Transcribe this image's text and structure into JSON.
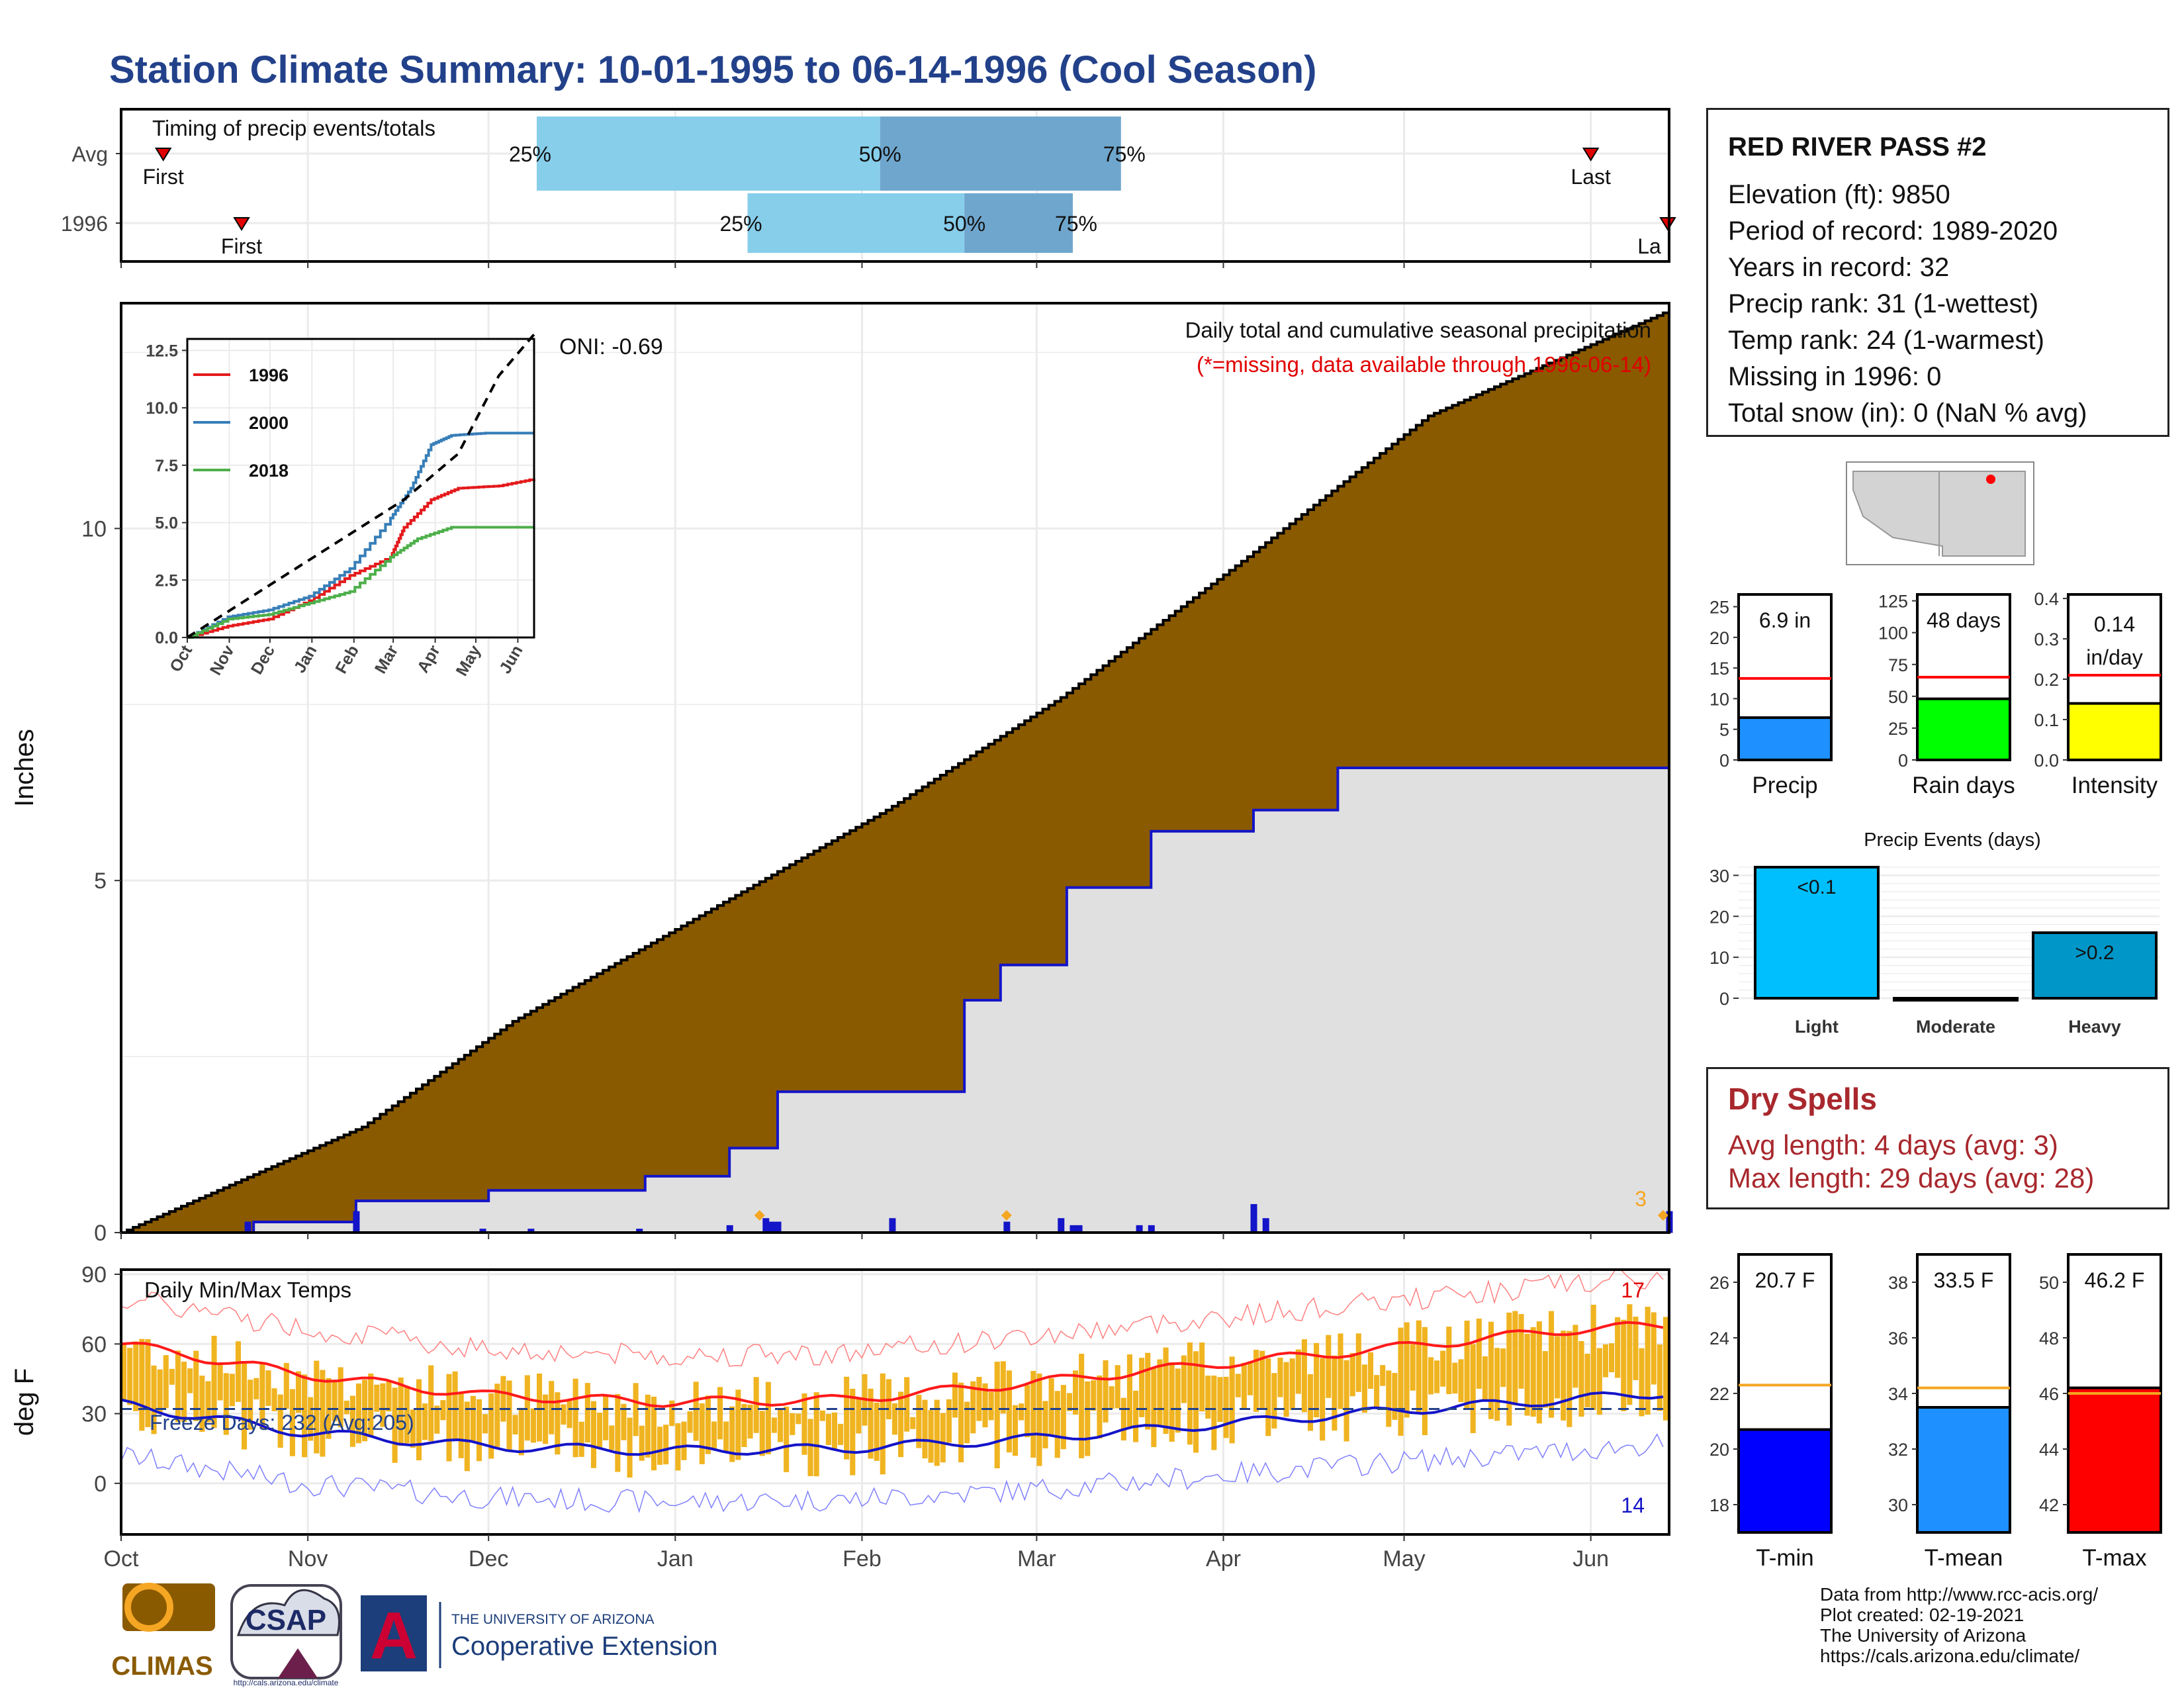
{
  "title": "Station Climate Summary: 10-01-1995 to 06-14-1996 (Cool Season)",
  "colors": {
    "title": "#22418a",
    "cumulative_fill": "#8a5a00",
    "avg_fill": "#e0e0e0",
    "avg_line": "#1414c8",
    "daily_bar": "#1414c8",
    "temp_bar": "#f0b421",
    "tmax_line": "#ff1a1a",
    "tmin_line": "#1414c8",
    "light_blue": "#87ceeb",
    "mid_blue": "#6fa6cd"
  },
  "timing_panel": {
    "title": "Timing of precip events/totals",
    "rows": [
      {
        "label": "Avg",
        "first_label": "First",
        "last_label": "Last",
        "first": "1995-10-08",
        "last": "1996-06-01",
        "q25": "1995-12-09",
        "q50": "1996-02-04",
        "q75": "1996-03-15",
        "q25_label": "25%",
        "q50_label": "50%",
        "q75_label": "75%"
      },
      {
        "label": "1996",
        "first_label": "First",
        "last_label": "La",
        "first": "1995-10-21",
        "last": "1996-06-14",
        "q25": "1996-01-13",
        "q50": "1996-02-18",
        "q75": "1996-03-07",
        "q25_label": "25%",
        "q50_label": "50%",
        "q75_label": "75%"
      }
    ]
  },
  "station": {
    "name": "RED RIVER PASS #2",
    "lines": [
      "Elevation (ft): 9850",
      "Period of record: 1989-2020",
      "Years in record: 32",
      "Precip rank: 31 (1-wettest)",
      "Temp rank: 24 (1-warmest)",
      "Missing in 1996: 0",
      "Total snow (in): 0 (NaN % avg)"
    ]
  },
  "precip_panel": {
    "ylabel": "Inches",
    "yticks": [
      "0",
      "5",
      "10"
    ],
    "oni": "ONI: -0.69",
    "caption": "Daily total and cumulative seasonal precipitation",
    "missing_note": "(*=missing, data available through 1996-06-14)",
    "count_label": "3"
  },
  "chart_data": [
    {
      "type": "area",
      "name": "cumulative precipitation",
      "x_range": [
        "1995-10-01",
        "1996-06-14"
      ],
      "ylim": [
        0,
        13.2
      ],
      "avg_cumulative": {
        "x": [
          "1995-10-01",
          "1995-11-10",
          "1995-12-05",
          "1996-01-05",
          "1996-02-05",
          "1996-03-05",
          "1996-04-05",
          "1996-05-05",
          "1996-06-14"
        ],
        "y": [
          0,
          1.5,
          3.0,
          4.5,
          6.0,
          7.6,
          9.6,
          11.6,
          13.1
        ]
      },
      "year_cumulative": {
        "x": [
          "1995-10-01",
          "1995-10-23",
          "1995-11-09",
          "1995-12-01",
          "1995-12-27",
          "1996-01-10",
          "1996-01-18",
          "1996-02-18",
          "1996-02-24",
          "1996-03-06",
          "1996-03-20",
          "1996-04-06",
          "1996-04-20",
          "1996-06-12",
          "1996-06-14"
        ],
        "y": [
          0,
          0.15,
          0.45,
          0.6,
          0.8,
          1.2,
          2.0,
          3.3,
          3.8,
          4.9,
          5.7,
          6.0,
          6.6,
          6.6,
          6.9
        ]
      },
      "daily_events": [
        {
          "date": "1995-10-22",
          "value": 0.15
        },
        {
          "date": "1995-11-09",
          "value": 0.3
        },
        {
          "date": "1995-11-30",
          "value": 0.05
        },
        {
          "date": "1995-12-08",
          "value": 0.05
        },
        {
          "date": "1995-12-26",
          "value": 0.05
        },
        {
          "date": "1996-01-10",
          "value": 0.1
        },
        {
          "date": "1996-01-16",
          "value": 0.2
        },
        {
          "date": "1996-01-17",
          "value": 0.15
        },
        {
          "date": "1996-01-18",
          "value": 0.15
        },
        {
          "date": "1996-02-06",
          "value": 0.2
        },
        {
          "date": "1996-02-25",
          "value": 0.15
        },
        {
          "date": "1996-03-05",
          "value": 0.2
        },
        {
          "date": "1996-03-07",
          "value": 0.1
        },
        {
          "date": "1996-03-08",
          "value": 0.1
        },
        {
          "date": "1996-03-18",
          "value": 0.1
        },
        {
          "date": "1996-03-20",
          "value": 0.1
        },
        {
          "date": "1996-04-06",
          "value": 0.4
        },
        {
          "date": "1996-04-08",
          "value": 0.2
        },
        {
          "date": "1996-06-14",
          "value": 0.3
        }
      ],
      "missing_marks": [
        {
          "date": "1996-01-15"
        },
        {
          "date": "1996-02-25"
        },
        {
          "date": "1996-06-13"
        }
      ]
    },
    {
      "type": "line",
      "name": "inset cumulative comparison",
      "yticks": [
        "0.0",
        "2.5",
        "5.0",
        "7.5",
        "10.0",
        "12.5"
      ],
      "ylim": [
        0,
        13
      ],
      "months": [
        "Oct",
        "Nov",
        "Dec",
        "Jan",
        "Feb",
        "Mar",
        "Apr",
        "May",
        "Jun"
      ],
      "series": [
        {
          "name": "1996",
          "color": "#e41a1c",
          "x": [
            0,
            30,
            60,
            90,
            120,
            150,
            160,
            180,
            200,
            230,
            256
          ],
          "y": [
            0,
            0.5,
            0.8,
            1.6,
            2.7,
            3.5,
            4.8,
            6.0,
            6.5,
            6.6,
            6.9
          ]
        },
        {
          "name": "2000",
          "color": "#377eb8",
          "x": [
            0,
            30,
            60,
            90,
            120,
            150,
            165,
            180,
            195,
            220,
            256
          ],
          "y": [
            0,
            0.9,
            1.2,
            1.8,
            3.0,
            5.2,
            6.5,
            8.4,
            8.8,
            8.9,
            8.9
          ]
        },
        {
          "name": "2018",
          "color": "#4daf4a",
          "x": [
            0,
            30,
            60,
            90,
            120,
            150,
            170,
            195,
            220,
            256
          ],
          "y": [
            0,
            0.8,
            1.0,
            1.5,
            2.0,
            3.5,
            4.3,
            4.8,
            4.8,
            4.8
          ]
        },
        {
          "name": "",
          "color": "#000000",
          "dashed": true,
          "x": [
            0,
            40,
            80,
            120,
            160,
            200,
            230,
            256
          ],
          "y": [
            0,
            1.5,
            3.0,
            4.5,
            6.0,
            8.0,
            11.4,
            13.2
          ]
        }
      ]
    },
    {
      "type": "bar",
      "name": "daily min/max temps",
      "title": "Daily Min/Max Temps",
      "ylabel": "deg F",
      "yticks": [
        "0",
        "30",
        "60",
        "90"
      ],
      "ylim": [
        -22,
        92
      ],
      "freeze_text": "Freeze Days: 232 (Avg:205)",
      "freeze_line": 32,
      "record_high_count": "17",
      "record_low_count": "14",
      "normal_tmax": {
        "x": [
          0,
          30,
          60,
          90,
          120,
          150,
          180,
          210,
          240,
          256
        ],
        "y": [
          60,
          47,
          38,
          35,
          36,
          43,
          51,
          58,
          66,
          68
        ]
      },
      "normal_tmin": {
        "x": [
          0,
          30,
          60,
          90,
          120,
          150,
          180,
          210,
          240,
          256
        ],
        "y": [
          34,
          22,
          16,
          14,
          15,
          19,
          25,
          31,
          36,
          39
        ]
      }
    },
    {
      "type": "bar",
      "name": "precip summary",
      "categories": [
        "Precip",
        "Rain days",
        "Intensity"
      ],
      "values": [
        6.9,
        48,
        0.14
      ],
      "averages": [
        13.3,
        65,
        0.21
      ],
      "value_labels": [
        "6.9 in",
        "48 days",
        "0.14 in/day"
      ],
      "yticks": [
        [
          "0",
          "5",
          "10",
          "15",
          "20",
          "25"
        ],
        [
          "0",
          "25",
          "50",
          "75",
          "100",
          "125"
        ],
        [
          "0.0",
          "0.1",
          "0.2",
          "0.3",
          "0.4"
        ]
      ],
      "ylims": [
        [
          0,
          27
        ],
        [
          0,
          130
        ],
        [
          0,
          0.41
        ]
      ],
      "colors": [
        "#1e90ff",
        "#00ff00",
        "#ffff00"
      ]
    },
    {
      "type": "bar",
      "name": "precip events",
      "title": "Precip Events (days)",
      "categories": [
        "Light",
        "Moderate",
        "Heavy"
      ],
      "values": [
        32,
        0,
        16
      ],
      "value_labels": [
        "<0.1",
        "",
        ">0.2"
      ],
      "yticks": [
        "0",
        "10",
        "20",
        "30"
      ],
      "ylim": [
        0,
        32
      ],
      "colors": [
        "#00bfff",
        "#2a7fb0",
        "#0096c8"
      ]
    },
    {
      "type": "bar",
      "name": "temperature summary",
      "categories": [
        "T-min",
        "T-mean",
        "T-max"
      ],
      "values": [
        20.7,
        33.5,
        46.2
      ],
      "averages": [
        22.3,
        34.2,
        46.0
      ],
      "value_labels": [
        "20.7 F",
        "33.5 F",
        "46.2 F"
      ],
      "yticks": [
        [
          "18",
          "20",
          "22",
          "24",
          "26"
        ],
        [
          "30",
          "32",
          "34",
          "36",
          "38"
        ],
        [
          "42",
          "44",
          "46",
          "48",
          "50"
        ]
      ],
      "ylims": [
        [
          17,
          27
        ],
        [
          29,
          39
        ],
        [
          41,
          51
        ]
      ],
      "colors": [
        "#0000ff",
        "#1e90ff",
        "#ff0000"
      ]
    }
  ],
  "x_axis_months": [
    "Oct",
    "Nov",
    "Dec",
    "Jan",
    "Feb",
    "Mar",
    "Apr",
    "May",
    "Jun"
  ],
  "dry_spells": {
    "title": "Dry Spells",
    "avg": "Avg length: 4 days (avg: 3)",
    "max": "Max length: 29 days (avg: 28)"
  },
  "logos": {
    "climas": "CLIMAS",
    "csap": "CSAP",
    "csap_url": "http://cals.arizona.edu/climate",
    "ua_line1": "THE UNIVERSITY OF ARIZONA",
    "ua_line2": "Cooperative Extension"
  },
  "credits": [
    "Data from http://www.rcc-acis.org/",
    "Plot created: 02-19-2021",
    "The University of Arizona",
    "https://cals.arizona.edu/climate/"
  ]
}
